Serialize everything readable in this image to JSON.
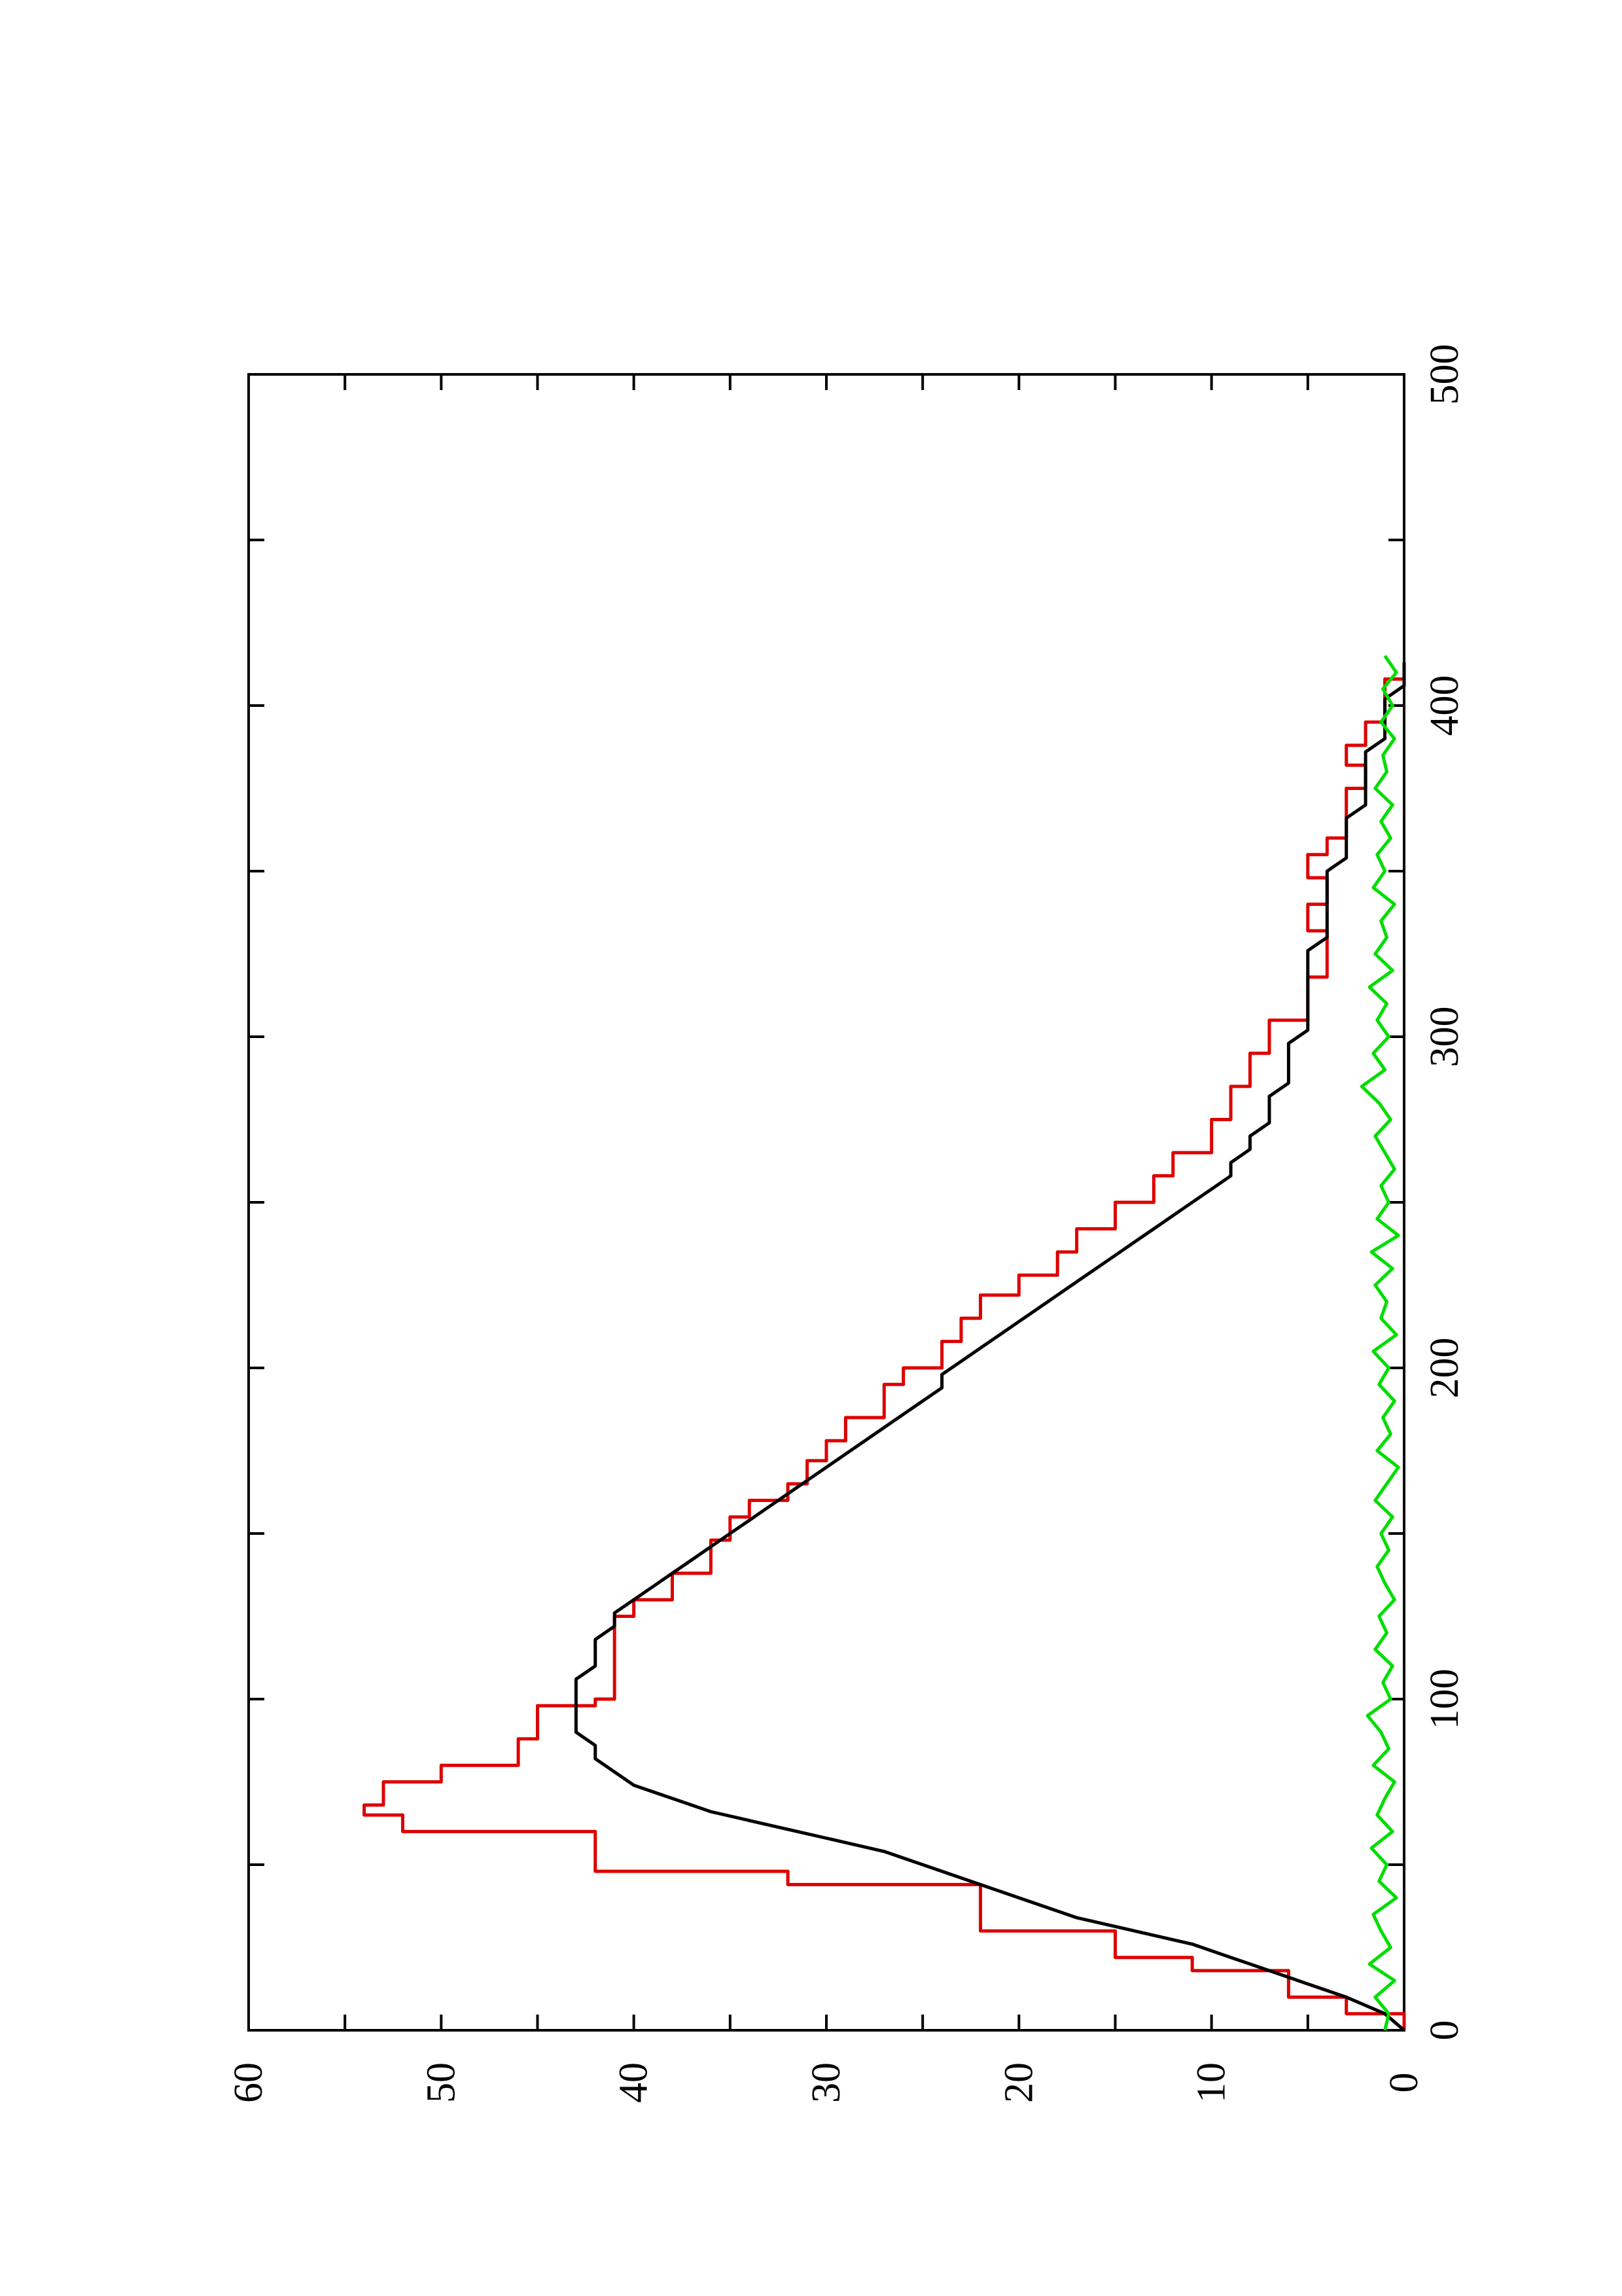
{
  "chart_data": {
    "type": "line",
    "rotated": "90-counterclockwise",
    "title": "",
    "xlabel": "",
    "ylabel": "",
    "xlim": [
      0,
      500
    ],
    "ylim": [
      0,
      60
    ],
    "x_ticks": [
      0,
      100,
      200,
      300,
      400,
      500
    ],
    "y_ticks": [
      0,
      10,
      20,
      30,
      40,
      50,
      60
    ],
    "grid": false,
    "legend": "none",
    "series": [
      {
        "color": "#dd0000",
        "style": "step",
        "points": [
          [
            0,
            0
          ],
          [
            5,
            0
          ],
          [
            5,
            3
          ],
          [
            10,
            3
          ],
          [
            10,
            6
          ],
          [
            18,
            6
          ],
          [
            18,
            11
          ],
          [
            22,
            11
          ],
          [
            22,
            15
          ],
          [
            30,
            15
          ],
          [
            30,
            22
          ],
          [
            44,
            22
          ],
          [
            44,
            32
          ],
          [
            48,
            32
          ],
          [
            48,
            42
          ],
          [
            60,
            42
          ],
          [
            60,
            52
          ],
          [
            65,
            52
          ],
          [
            65,
            54
          ],
          [
            68,
            54
          ],
          [
            68,
            53
          ],
          [
            75,
            53
          ],
          [
            75,
            50
          ],
          [
            80,
            50
          ],
          [
            80,
            46
          ],
          [
            88,
            46
          ],
          [
            88,
            45
          ],
          [
            98,
            45
          ],
          [
            98,
            42
          ],
          [
            100,
            42
          ],
          [
            100,
            41
          ],
          [
            110,
            41
          ],
          [
            110,
            41
          ],
          [
            118,
            41
          ],
          [
            118,
            41
          ],
          [
            125,
            41
          ],
          [
            125,
            40
          ],
          [
            130,
            40
          ],
          [
            130,
            38
          ],
          [
            138,
            38
          ],
          [
            138,
            36
          ],
          [
            148,
            36
          ],
          [
            148,
            35
          ],
          [
            155,
            35
          ],
          [
            155,
            34
          ],
          [
            160,
            34
          ],
          [
            160,
            32
          ],
          [
            165,
            32
          ],
          [
            165,
            31
          ],
          [
            172,
            31
          ],
          [
            172,
            30
          ],
          [
            178,
            30
          ],
          [
            178,
            29
          ],
          [
            185,
            29
          ],
          [
            185,
            27
          ],
          [
            195,
            27
          ],
          [
            195,
            26
          ],
          [
            200,
            26
          ],
          [
            200,
            24
          ],
          [
            208,
            24
          ],
          [
            208,
            23
          ],
          [
            215,
            23
          ],
          [
            215,
            22
          ],
          [
            222,
            22
          ],
          [
            222,
            20
          ],
          [
            228,
            20
          ],
          [
            228,
            18
          ],
          [
            235,
            18
          ],
          [
            235,
            17
          ],
          [
            242,
            17
          ],
          [
            242,
            15
          ],
          [
            250,
            15
          ],
          [
            250,
            13
          ],
          [
            258,
            13
          ],
          [
            258,
            12
          ],
          [
            265,
            12
          ],
          [
            265,
            10
          ],
          [
            275,
            10
          ],
          [
            275,
            9
          ],
          [
            285,
            9
          ],
          [
            285,
            8
          ],
          [
            295,
            8
          ],
          [
            295,
            7
          ],
          [
            305,
            7
          ],
          [
            305,
            5
          ],
          [
            312,
            5
          ],
          [
            312,
            5
          ],
          [
            318,
            5
          ],
          [
            318,
            4
          ],
          [
            325,
            4
          ],
          [
            325,
            4
          ],
          [
            332,
            4
          ],
          [
            332,
            5
          ],
          [
            340,
            5
          ],
          [
            340,
            4
          ],
          [
            348,
            4
          ],
          [
            348,
            5
          ],
          [
            355,
            5
          ],
          [
            355,
            4
          ],
          [
            360,
            4
          ],
          [
            360,
            3
          ],
          [
            368,
            3
          ],
          [
            368,
            3
          ],
          [
            375,
            3
          ],
          [
            375,
            2
          ],
          [
            382,
            2
          ],
          [
            382,
            3
          ],
          [
            388,
            3
          ],
          [
            388,
            2
          ],
          [
            395,
            2
          ],
          [
            395,
            1
          ],
          [
            402,
            1
          ],
          [
            402,
            1
          ],
          [
            408,
            1
          ],
          [
            408,
            0
          ],
          [
            412,
            0
          ],
          [
            412,
            0
          ]
        ]
      },
      {
        "color": "#000000",
        "style": "line",
        "points": [
          [
            0,
            0
          ],
          [
            5,
            1
          ],
          [
            10,
            3
          ],
          [
            14,
            5
          ],
          [
            18,
            7
          ],
          [
            22,
            9
          ],
          [
            26,
            11
          ],
          [
            30,
            14
          ],
          [
            34,
            17
          ],
          [
            38,
            19
          ],
          [
            42,
            21
          ],
          [
            46,
            23
          ],
          [
            50,
            25
          ],
          [
            54,
            27
          ],
          [
            58,
            30
          ],
          [
            62,
            33
          ],
          [
            66,
            36
          ],
          [
            70,
            38
          ],
          [
            74,
            40
          ],
          [
            78,
            41
          ],
          [
            82,
            42
          ],
          [
            86,
            42
          ],
          [
            90,
            43
          ],
          [
            94,
            43
          ],
          [
            98,
            43
          ],
          [
            102,
            43
          ],
          [
            106,
            43
          ],
          [
            110,
            42
          ],
          [
            114,
            42
          ],
          [
            118,
            42
          ],
          [
            122,
            41
          ],
          [
            126,
            41
          ],
          [
            130,
            40
          ],
          [
            134,
            39
          ],
          [
            138,
            38
          ],
          [
            142,
            37
          ],
          [
            146,
            36
          ],
          [
            150,
            35
          ],
          [
            154,
            34
          ],
          [
            158,
            33
          ],
          [
            162,
            32
          ],
          [
            166,
            31
          ],
          [
            170,
            30
          ],
          [
            174,
            29
          ],
          [
            178,
            28
          ],
          [
            182,
            27
          ],
          [
            186,
            26
          ],
          [
            190,
            25
          ],
          [
            194,
            24
          ],
          [
            198,
            24
          ],
          [
            202,
            23
          ],
          [
            206,
            22
          ],
          [
            210,
            21
          ],
          [
            214,
            20
          ],
          [
            218,
            19
          ],
          [
            222,
            18
          ],
          [
            226,
            17
          ],
          [
            230,
            16
          ],
          [
            234,
            15
          ],
          [
            238,
            14
          ],
          [
            242,
            13
          ],
          [
            246,
            12
          ],
          [
            250,
            11
          ],
          [
            254,
            10
          ],
          [
            258,
            9
          ],
          [
            262,
            9
          ],
          [
            266,
            8
          ],
          [
            270,
            8
          ],
          [
            274,
            7
          ],
          [
            278,
            7
          ],
          [
            282,
            7
          ],
          [
            286,
            6
          ],
          [
            290,
            6
          ],
          [
            294,
            6
          ],
          [
            298,
            6
          ],
          [
            302,
            5
          ],
          [
            306,
            5
          ],
          [
            310,
            5
          ],
          [
            314,
            5
          ],
          [
            318,
            5
          ],
          [
            322,
            5
          ],
          [
            326,
            5
          ],
          [
            330,
            4
          ],
          [
            334,
            4
          ],
          [
            338,
            4
          ],
          [
            342,
            4
          ],
          [
            346,
            4
          ],
          [
            350,
            4
          ],
          [
            354,
            3
          ],
          [
            358,
            3
          ],
          [
            362,
            3
          ],
          [
            366,
            3
          ],
          [
            370,
            2
          ],
          [
            374,
            2
          ],
          [
            378,
            2
          ],
          [
            382,
            2
          ],
          [
            386,
            2
          ],
          [
            390,
            1
          ],
          [
            394,
            1
          ],
          [
            398,
            1
          ],
          [
            402,
            1
          ],
          [
            406,
            0
          ],
          [
            410,
            0
          ],
          [
            413,
            0
          ]
        ]
      },
      {
        "color": "#00dd00",
        "style": "line",
        "points": [
          [
            0,
            1.0
          ],
          [
            5,
            0.8
          ],
          [
            10,
            1.5
          ],
          [
            15,
            0.5
          ],
          [
            20,
            1.8
          ],
          [
            25,
            0.7
          ],
          [
            30,
            1.2
          ],
          [
            35,
            1.6
          ],
          [
            40,
            0.4
          ],
          [
            45,
            1.3
          ],
          [
            50,
            0.9
          ],
          [
            55,
            1.7
          ],
          [
            60,
            0.6
          ],
          [
            65,
            1.4
          ],
          [
            70,
            1.0
          ],
          [
            75,
            0.5
          ],
          [
            80,
            1.6
          ],
          [
            85,
            0.8
          ],
          [
            90,
            1.2
          ],
          [
            95,
            1.9
          ],
          [
            100,
            0.7
          ],
          [
            105,
            1.1
          ],
          [
            110,
            0.6
          ],
          [
            115,
            1.5
          ],
          [
            120,
            0.9
          ],
          [
            125,
            1.3
          ],
          [
            130,
            0.5
          ],
          [
            135,
            1.0
          ],
          [
            140,
            1.4
          ],
          [
            145,
            0.8
          ],
          [
            150,
            1.2
          ],
          [
            155,
            0.6
          ],
          [
            160,
            1.5
          ],
          [
            165,
            0.9
          ],
          [
            170,
            0.3
          ],
          [
            175,
            1.4
          ],
          [
            180,
            0.7
          ],
          [
            185,
            1.1
          ],
          [
            190,
            0.5
          ],
          [
            195,
            1.3
          ],
          [
            200,
            0.8
          ],
          [
            205,
            1.6
          ],
          [
            210,
            0.4
          ],
          [
            215,
            1.2
          ],
          [
            220,
            0.9
          ],
          [
            225,
            1.5
          ],
          [
            230,
            0.6
          ],
          [
            235,
            1.7
          ],
          [
            240,
            0.3
          ],
          [
            245,
            1.4
          ],
          [
            250,
            0.8
          ],
          [
            255,
            1.2
          ],
          [
            260,
            0.5
          ],
          [
            265,
            1.0
          ],
          [
            270,
            1.5
          ],
          [
            275,
            0.7
          ],
          [
            280,
            1.3
          ],
          [
            285,
            2.2
          ],
          [
            290,
            1.0
          ],
          [
            295,
            1.6
          ],
          [
            300,
            0.8
          ],
          [
            305,
            1.4
          ],
          [
            310,
            0.9
          ],
          [
            315,
            1.8
          ],
          [
            320,
            0.6
          ],
          [
            325,
            1.5
          ],
          [
            330,
            0.9
          ],
          [
            335,
            1.2
          ],
          [
            340,
            0.5
          ],
          [
            345,
            1.6
          ],
          [
            350,
            1.0
          ],
          [
            355,
            1.4
          ],
          [
            360,
            0.7
          ],
          [
            365,
            1.2
          ],
          [
            370,
            0.6
          ],
          [
            375,
            1.5
          ],
          [
            380,
            0.9
          ],
          [
            385,
            1.1
          ],
          [
            390,
            0.5
          ],
          [
            395,
            1.2
          ],
          [
            400,
            0.6
          ],
          [
            405,
            1.1
          ],
          [
            410,
            0.4
          ],
          [
            415,
            1.0
          ]
        ]
      }
    ]
  }
}
